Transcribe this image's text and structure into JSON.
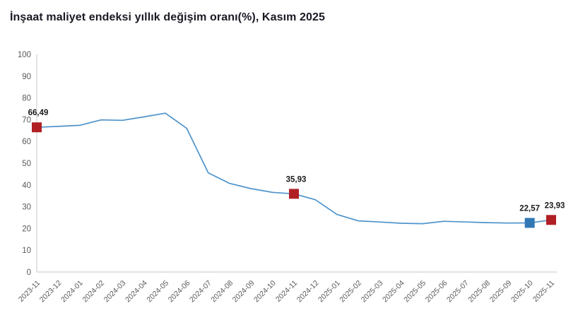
{
  "chart_data": {
    "type": "line",
    "title": "İnşaat maliyet endeksi yıllık değişim oranı(%), Kasım 2025",
    "xlabel": "",
    "ylabel": "",
    "ylim": [
      0,
      100
    ],
    "ytick_step": 10,
    "grid": false,
    "legend_position": "none",
    "number_format": "decimal-comma",
    "categories": [
      "2023-11",
      "2023-12",
      "2024-01",
      "2024-02",
      "2024-03",
      "2024-04",
      "2024-05",
      "2024-06",
      "2024-07",
      "2024-08",
      "2024-09",
      "2024-10",
      "2024-11",
      "2024-12",
      "2025-01",
      "2025-02",
      "2025-03",
      "2025-04",
      "2025-05",
      "2025-06",
      "2025-07",
      "2025-08",
      "2025-09",
      "2025-10",
      "2025-11"
    ],
    "values": [
      66.49,
      66.9,
      67.4,
      69.9,
      69.7,
      71.3,
      73.0,
      66.0,
      45.6,
      40.7,
      38.3,
      36.6,
      35.93,
      33.2,
      26.5,
      23.5,
      23.0,
      22.4,
      22.2,
      23.3,
      23.0,
      22.7,
      22.5,
      22.57,
      23.93
    ],
    "marked_points": [
      {
        "category": "2023-11",
        "index": 0,
        "value": 66.49,
        "label": "66,49",
        "color_key": "marker_red",
        "label_dx": 2
      },
      {
        "category": "2024-11",
        "index": 12,
        "value": 35.93,
        "label": "35,93",
        "color_key": "marker_red",
        "label_dx": 3
      },
      {
        "category": "2025-10",
        "index": 23,
        "value": 22.57,
        "label": "22,57",
        "color_key": "marker_blue",
        "label_dx": 0
      },
      {
        "category": "2025-11",
        "index": 24,
        "value": 23.93,
        "label": "23,93",
        "color_key": "marker_red",
        "label_dx": 5
      }
    ],
    "colors": {
      "line": "#4E93CB",
      "marker_red": "#B01F24",
      "marker_blue": "#3178B4",
      "axis": "#D9D9D9",
      "tick_text": "#595959",
      "data_label_text": "#1A1A1A",
      "title_text": "#1A1A24",
      "background": "#FFFFFF"
    }
  }
}
